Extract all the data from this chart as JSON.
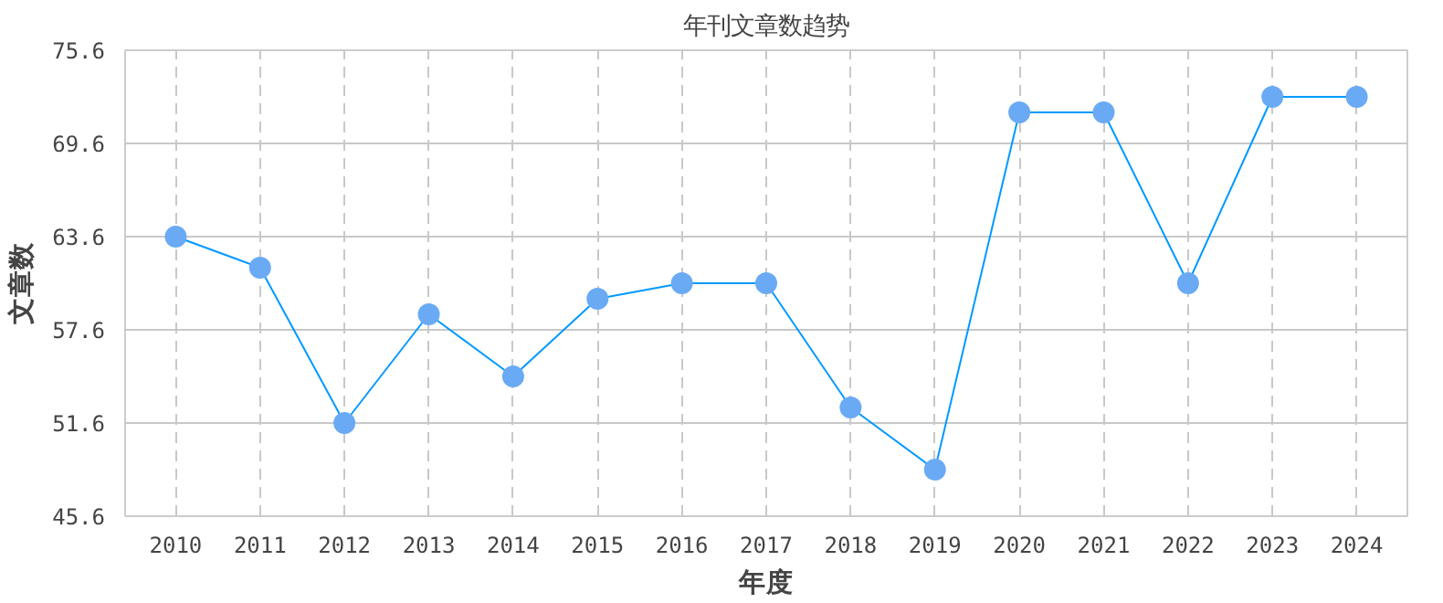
{
  "chart_data": {
    "type": "line",
    "title": "年刊文章数趋势",
    "xlabel": "年度",
    "ylabel": "文章数",
    "categories": [
      "2010",
      "2011",
      "2012",
      "2013",
      "2014",
      "2015",
      "2016",
      "2017",
      "2018",
      "2019",
      "2020",
      "2021",
      "2022",
      "2023",
      "2024"
    ],
    "series": [
      {
        "color": "#0099ff",
        "values": [
          63.6,
          61.6,
          51.6,
          58.6,
          54.6,
          59.6,
          60.6,
          60.6,
          52.6,
          48.6,
          71.6,
          71.6,
          60.6,
          72.6,
          72.6
        ]
      }
    ],
    "ylim": [
      45.6,
      75.6
    ],
    "yticks": [
      45.6,
      51.6,
      57.6,
      63.6,
      69.6,
      75.6
    ],
    "grid": true,
    "marker": "circle",
    "line_style": "solid"
  }
}
